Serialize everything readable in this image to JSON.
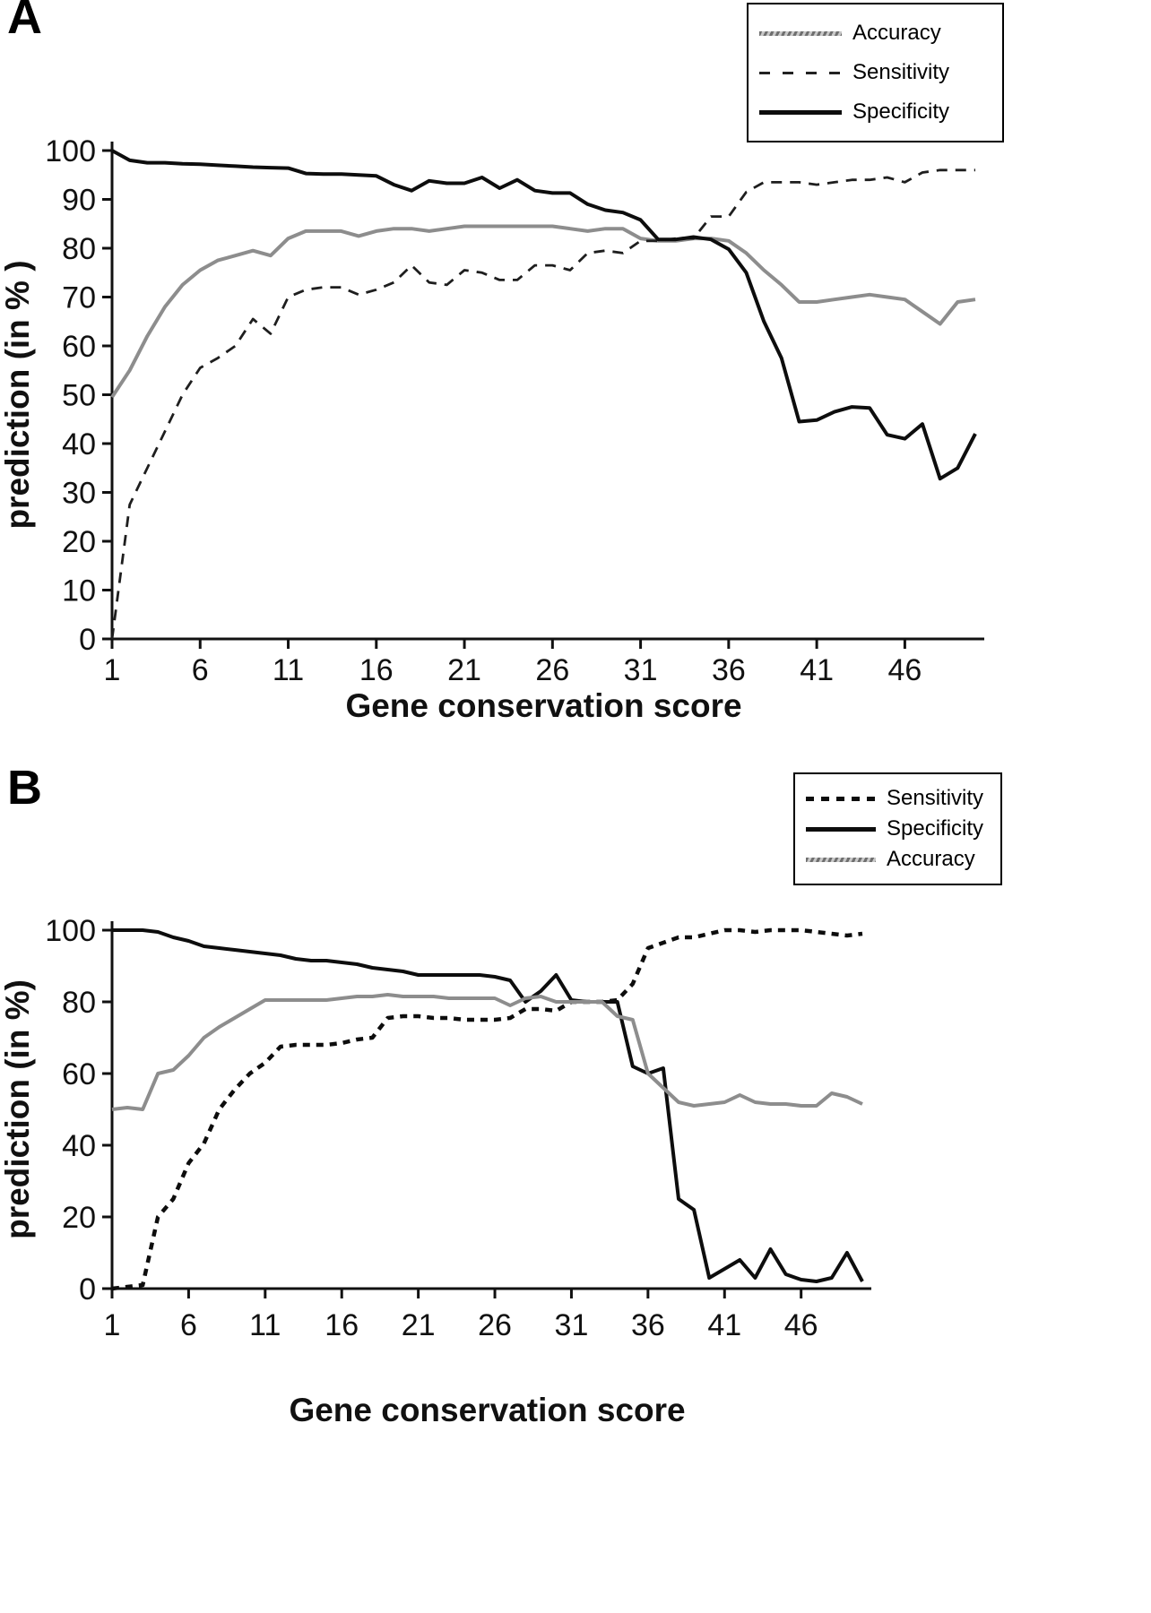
{
  "panels": [
    {
      "label": "A"
    },
    {
      "label": "B"
    }
  ],
  "colors": {
    "accuracy_line": "#8d8d8d",
    "black_line": "#0d0d0d",
    "background": "#ffffff"
  },
  "chart_data": [
    {
      "type": "line",
      "panel": "A",
      "title": "",
      "xlabel": "Gene conservation score",
      "ylabel": "prediction (in % )",
      "xlim": [
        1,
        50
      ],
      "ylim": [
        0,
        100
      ],
      "xticks": [
        1,
        6,
        11,
        16,
        21,
        26,
        31,
        36,
        41,
        46
      ],
      "yticks": [
        0,
        10,
        20,
        30,
        40,
        50,
        60,
        70,
        80,
        90,
        100
      ],
      "x_start": 1,
      "x_step": 1,
      "grid": false,
      "legend_position": "top-right",
      "legend_order": [
        "Accuracy",
        "Sensitivity",
        "Specificity"
      ],
      "series": [
        {
          "name": "Accuracy",
          "style": "gray",
          "values": [
            49.5,
            55,
            62,
            68,
            72.5,
            75.5,
            77.5,
            78.5,
            79.5,
            78.5,
            82,
            83.5,
            83.5,
            83.5,
            82.5,
            83.5,
            84,
            84,
            83.5,
            84,
            84.5,
            84.5,
            84.5,
            84.5,
            84.5,
            84.5,
            84,
            83.5,
            84,
            84,
            82,
            81.5,
            81.5,
            82,
            82,
            81.5,
            79,
            75.5,
            72.5,
            69,
            69,
            69.5,
            70,
            70.5,
            70,
            69.5,
            67,
            64.5,
            69,
            69.5
          ]
        },
        {
          "name": "Sensitivity",
          "style": "dashed",
          "values": [
            0,
            27.5,
            35,
            42.5,
            50,
            55.5,
            57.5,
            60,
            65.5,
            62.5,
            70,
            71.5,
            72,
            72,
            70.5,
            71.5,
            73,
            76.5,
            73,
            72.5,
            75.5,
            75,
            73.5,
            73.5,
            76.5,
            76.5,
            75.5,
            79,
            79.5,
            79,
            81.5,
            81.5,
            82,
            82,
            86.5,
            86.5,
            91.5,
            93.5,
            93.5,
            93.5,
            93,
            93.5,
            94,
            94,
            94.5,
            93.5,
            95.5,
            96,
            96,
            96
          ]
        },
        {
          "name": "Specificity",
          "style": "solid",
          "values": [
            100,
            98,
            97.5,
            97.5,
            97.3,
            97.2,
            97,
            96.8,
            96.6,
            96.5,
            96.4,
            95.3,
            95.2,
            95.2,
            95,
            94.8,
            93,
            91.8,
            93.8,
            93.3,
            93.3,
            94.5,
            92.3,
            94,
            91.8,
            91.3,
            91.3,
            89,
            87.8,
            87.3,
            85.8,
            81.8,
            81.8,
            82.3,
            81.8,
            79.8,
            75,
            65,
            57.5,
            44.5,
            44.8,
            46.5,
            47.5,
            47.3,
            41.8,
            41,
            44,
            32.8,
            35,
            42
          ]
        }
      ]
    },
    {
      "type": "line",
      "panel": "B",
      "title": "",
      "xlabel": "Gene conservation score",
      "ylabel": "prediction (in %)",
      "xlim": [
        1,
        50
      ],
      "ylim": [
        0,
        100
      ],
      "xticks": [
        1,
        6,
        11,
        16,
        21,
        26,
        31,
        36,
        41,
        46
      ],
      "yticks": [
        0,
        20,
        40,
        60,
        80,
        100
      ],
      "x_start": 1,
      "x_step": 1,
      "grid": false,
      "legend_position": "top-right",
      "legend_order": [
        "Sensitivity",
        "Specificity",
        "Accuracy"
      ],
      "series": [
        {
          "name": "Sensitivity",
          "style": "dashed-bold",
          "values": [
            0,
            0.5,
            1,
            20,
            25,
            35,
            40.5,
            50,
            55.5,
            60,
            63,
            67.5,
            68,
            68,
            68,
            68.5,
            69.5,
            70,
            75.5,
            76,
            76,
            75.5,
            75.5,
            75,
            75,
            75,
            75.5,
            78,
            78,
            77.5,
            80,
            80,
            80,
            80.5,
            85,
            95,
            96.5,
            98,
            98,
            99,
            100,
            100,
            99.5,
            100,
            100,
            100,
            99.5,
            99,
            98.5,
            99
          ]
        },
        {
          "name": "Specificity",
          "style": "solid",
          "values": [
            100,
            100,
            100,
            99.5,
            98,
            97,
            95.5,
            95,
            94.5,
            94,
            93.5,
            93,
            92,
            91.5,
            91.5,
            91,
            90.5,
            89.5,
            89,
            88.5,
            87.5,
            87.5,
            87.5,
            87.5,
            87.5,
            87,
            86,
            80,
            83,
            87.5,
            80.5,
            80,
            80,
            80,
            62,
            60,
            61.5,
            25,
            22,
            3,
            5.5,
            8,
            3,
            11,
            4,
            2.5,
            2,
            3,
            10,
            2
          ]
        },
        {
          "name": "Accuracy",
          "style": "gray",
          "values": [
            50,
            50.5,
            50,
            60,
            61,
            65,
            70,
            73,
            75.5,
            78,
            80.5,
            80.5,
            80.5,
            80.5,
            80.5,
            81,
            81.5,
            81.5,
            82,
            81.5,
            81.5,
            81.5,
            81,
            81,
            81,
            81,
            79,
            81,
            81.5,
            80,
            80,
            80,
            80,
            76,
            75,
            60,
            56,
            52,
            51,
            51.5,
            52,
            54,
            52,
            51.5,
            51.5,
            51,
            51,
            54.5,
            53.5,
            51.5
          ]
        }
      ]
    }
  ]
}
